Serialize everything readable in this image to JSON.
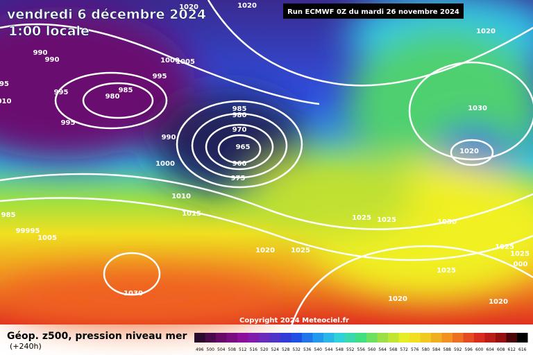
{
  "header": {
    "title": "vendredi 6 décembre 2024",
    "subtitle": "1:00 locale",
    "run": "Run ECMWF 0Z du mardi 26 novembre 2024"
  },
  "map": {
    "copyright": "Copyright 2024 Meteociel.fr",
    "isobar_labels": [
      "1020",
      "1020",
      "1020",
      "990",
      "990",
      "1000",
      "1005",
      "995",
      "995",
      "985",
      "980",
      "995",
      "985",
      "980",
      "970",
      "990",
      "965",
      "960",
      "975",
      "1030",
      "1020",
      "1000",
      "1010",
      "1015",
      "985",
      "99995",
      "1005",
      "1025",
      "1025",
      "1030",
      "1020",
      "1025",
      "1025",
      "1025",
      "1025",
      "1030",
      "1020",
      "1020",
      "000",
      "95",
      "010"
    ]
  },
  "legend": {
    "title": "Géop. z500, pression niveau mer",
    "subtitle": "(+240h)",
    "scale": [
      496,
      500,
      504,
      508,
      512,
      516,
      520,
      524,
      528,
      532,
      536,
      540,
      544,
      548,
      552,
      556,
      560,
      564,
      568,
      572,
      576,
      580,
      584,
      588,
      592,
      596,
      600,
      604,
      608,
      612,
      616
    ]
  }
}
